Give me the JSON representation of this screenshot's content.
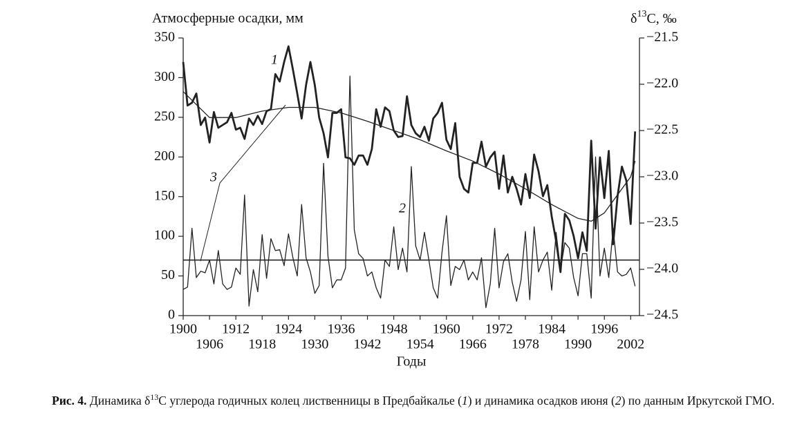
{
  "chart_data": {
    "type": "line",
    "ylabel": "Атмосферные осадки, мм",
    "y2label": [
      "δ",
      "13",
      "C, ‰"
    ],
    "xlabel": "Годы",
    "x": [
      1900,
      1901,
      1902,
      1903,
      1904,
      1905,
      1906,
      1907,
      1908,
      1909,
      1910,
      1911,
      1912,
      1913,
      1914,
      1915,
      1916,
      1917,
      1918,
      1919,
      1920,
      1921,
      1922,
      1923,
      1924,
      1925,
      1926,
      1927,
      1928,
      1929,
      1930,
      1931,
      1932,
      1933,
      1934,
      1935,
      1936,
      1937,
      1938,
      1939,
      1940,
      1941,
      1942,
      1943,
      1944,
      1945,
      1946,
      1947,
      1948,
      1949,
      1950,
      1951,
      1952,
      1953,
      1954,
      1955,
      1956,
      1957,
      1958,
      1959,
      1960,
      1961,
      1962,
      1963,
      1964,
      1965,
      1966,
      1967,
      1968,
      1969,
      1970,
      1971,
      1972,
      1973,
      1974,
      1975,
      1976,
      1977,
      1978,
      1979,
      1980,
      1981,
      1982,
      1983,
      1984,
      1985,
      1986,
      1987,
      1988,
      1989,
      1990,
      1991,
      1992,
      1993,
      1994,
      1995,
      1996,
      1997,
      1998,
      1999,
      2000,
      2001,
      2002,
      2003
    ],
    "series": [
      {
        "name": "1",
        "color": "#222",
        "axis": "y2",
        "values": [
          -21.76,
          -22.23,
          -22.2,
          -22.1,
          -22.44,
          -22.36,
          -22.63,
          -22.3,
          -22.47,
          -22.44,
          -22.41,
          -22.31,
          -22.49,
          -22.47,
          -22.59,
          -22.37,
          -22.44,
          -22.34,
          -22.43,
          -22.29,
          -22.27,
          -21.89,
          -21.97,
          -21.76,
          -21.59,
          -21.84,
          -22.1,
          -22.37,
          -22.01,
          -21.76,
          -22.01,
          -22.36,
          -22.53,
          -22.79,
          -22.31,
          -22.31,
          -22.27,
          -22.79,
          -22.8,
          -22.87,
          -22.77,
          -22.77,
          -22.87,
          -22.7,
          -22.27,
          -22.46,
          -22.25,
          -22.29,
          -22.5,
          -22.57,
          -22.56,
          -22.13,
          -22.44,
          -22.53,
          -22.57,
          -22.46,
          -22.61,
          -22.37,
          -22.31,
          -22.2,
          -22.6,
          -22.7,
          -22.42,
          -23.0,
          -23.13,
          -23.17,
          -22.85,
          -22.85,
          -22.62,
          -22.89,
          -22.79,
          -22.73,
          -23.13,
          -22.77,
          -23.17,
          -23.0,
          -23.13,
          -23.3,
          -22.97,
          -23.23,
          -22.76,
          -22.94,
          -23.21,
          -23.09,
          -23.43,
          -23.69,
          -24.03,
          -23.4,
          -23.47,
          -23.64,
          -23.88,
          -23.6,
          -23.8,
          -22.61,
          -23.56,
          -22.79,
          -23.23,
          -22.72,
          -23.73,
          -23.21,
          -22.89,
          -23.04,
          -23.51,
          -22.51
        ]
      },
      {
        "name": "2",
        "color": "#222",
        "axis": "y",
        "values": [
          33,
          36,
          110,
          48,
          56,
          54,
          70,
          40,
          82,
          40,
          33,
          36,
          60,
          52,
          152,
          12,
          58,
          30,
          102,
          47,
          97,
          82,
          83,
          63,
          103,
          73,
          50,
          140,
          73,
          55,
          28,
          38,
          192,
          75,
          35,
          45,
          45,
          60,
          302,
          108,
          78,
          72,
          50,
          55,
          35,
          22,
          70,
          62,
          112,
          58,
          85,
          55,
          188,
          88,
          70,
          105,
          70,
          35,
          22,
          80,
          126,
          38,
          62,
          58,
          70,
          45,
          55,
          45,
          73,
          10,
          40,
          110,
          35,
          68,
          78,
          42,
          18,
          45,
          106,
          20,
          112,
          55,
          70,
          80,
          32,
          105,
          58,
          92,
          85,
          48,
          25,
          78,
          78,
          22,
          200,
          50,
          85,
          48,
          110,
          55,
          50,
          52,
          60,
          37
        ]
      }
    ],
    "trend": {
      "name": "3",
      "axis": "y2",
      "x": [
        1900,
        1906,
        1912,
        1918,
        1924,
        1930,
        1936,
        1942,
        1948,
        1954,
        1960,
        1966,
        1972,
        1978,
        1984,
        1990,
        1993,
        1996,
        2002,
        2003
      ],
      "values": [
        -22.08,
        -22.36,
        -22.36,
        -22.29,
        -22.25,
        -22.25,
        -22.31,
        -22.4,
        -22.5,
        -22.6,
        -22.72,
        -22.83,
        -22.97,
        -23.13,
        -23.3,
        -23.45,
        -23.48,
        -23.39,
        -23.0,
        -22.83
      ]
    },
    "mean_line": 70,
    "xlim": [
      1900,
      2004
    ],
    "xticks": [
      1900,
      1906,
      1912,
      1918,
      1924,
      1930,
      1936,
      1942,
      1948,
      1954,
      1960,
      1966,
      1972,
      1978,
      1984,
      1990,
      1996,
      2002
    ],
    "ylim": [
      0,
      350
    ],
    "yticks": [
      0,
      50,
      100,
      150,
      200,
      250,
      300,
      350
    ],
    "y2lim": [
      -24.5,
      -21.5
    ],
    "y2ticks": [
      {
        "value": -21.5,
        "label": "−21.5"
      },
      {
        "value": -22.0,
        "label": "−22.0"
      },
      {
        "value": -22.5,
        "label": "−22.5"
      },
      {
        "value": -23.0,
        "label": "−23.0"
      },
      {
        "value": -23.5,
        "label": "−23.5"
      },
      {
        "value": -24.0,
        "label": "−24.0"
      },
      {
        "value": -24.5,
        "label": "−24.5"
      }
    ]
  },
  "caption": [
    "Рис. 4.",
    " Динамика δ",
    "13",
    "С углерода годичных колец лиственницы в Предбайкалье (",
    "1",
    ") и динамика осадков июня (",
    "2",
    ") по данным Иркутской ГМО."
  ]
}
